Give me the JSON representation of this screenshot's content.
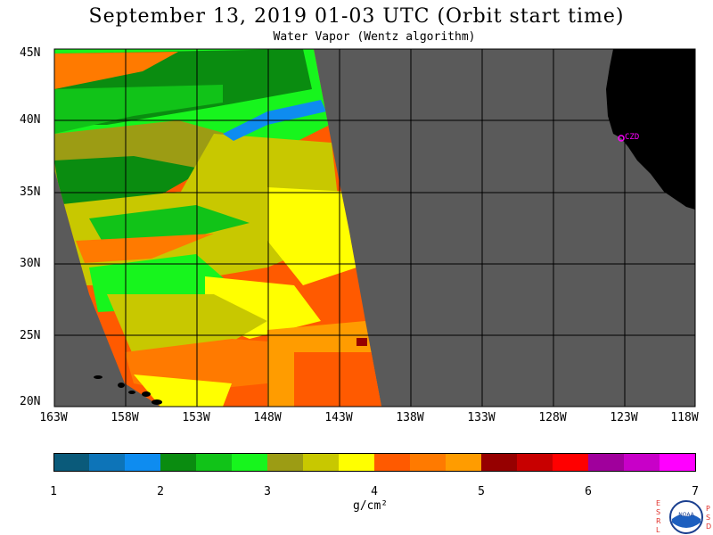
{
  "title": "September 13, 2019  01-03 UTC  (Orbit start time)",
  "subtitle": "Water Vapor (Wentz algorithm)",
  "lat_labels": [
    "45N",
    "40N",
    "35N",
    "30N",
    "25N",
    "20N"
  ],
  "lon_labels": [
    "163W",
    "158W",
    "153W",
    "148W",
    "143W",
    "138W",
    "133W",
    "128W",
    "123W",
    "118W"
  ],
  "station_label": "CZD",
  "colorbar": {
    "ticks": [
      "1",
      "2",
      "3",
      "4",
      "5",
      "6",
      "7"
    ],
    "units": "g/cm²",
    "colors": [
      "#0a5a7a",
      "#0d74b8",
      "#0e8cf0",
      "#0a8c10",
      "#11c318",
      "#17f51d",
      "#9c9c14",
      "#c8c800",
      "#ffff00",
      "#ff5a00",
      "#ff7a00",
      "#ff9c00",
      "#960000",
      "#c80000",
      "#ff0000",
      "#a0009c",
      "#c800c8",
      "#ff00ff"
    ]
  },
  "map_colors": {
    "ocean": "#5a5a5a",
    "land": "#000000",
    "station": "#ff00ff"
  },
  "logo": {
    "left_letters": "ESRL",
    "right_letters": "PSD",
    "emblem_text": "NOAA"
  }
}
